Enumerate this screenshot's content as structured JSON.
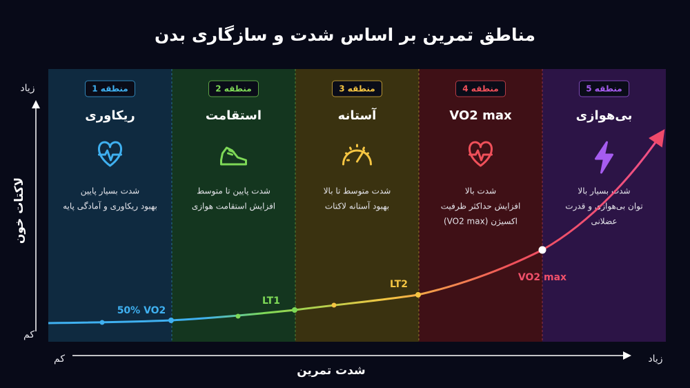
{
  "header": {
    "title": "مناطق تمرین بر اساس شدت و سازگاری بدن"
  },
  "y_axis": {
    "label": "لاکتات خون",
    "high": "زیاد",
    "low": "کم"
  },
  "x_axis": {
    "label": "شدت تمرین",
    "low": "کم",
    "high": "زیاد"
  },
  "zones": [
    {
      "badge": "منطقه 1",
      "title": "ریکاوری",
      "description": [
        "شدت بسیار پایین",
        "بهبود ریکاوری و آمادگی پایه"
      ]
    },
    {
      "badge": "منطقه 2",
      "title": "استقامت",
      "description": [
        "شدت پایین تا متوسط",
        "افزایش استقامت هوازی"
      ]
    },
    {
      "badge": "منطقه 3",
      "title": "آستانه",
      "description": [
        "شدت متوسط تا بالا",
        "بهبود آستانه لاکتات"
      ]
    },
    {
      "badge": "منطقه 4",
      "title": "VO2 max",
      "description": [
        "شدت بالا",
        "افزایش حداکثر ظرفیت",
        "اکسیژن (VO2 max)"
      ]
    },
    {
      "badge": "منطقه 5",
      "title": "بی‌هوازی",
      "description": [
        "شدت بسیار بالا",
        "توان بی‌هوازی و قدرت",
        "عضلانی"
      ]
    }
  ],
  "curve_markers": [
    "50% VO2",
    "LT1",
    "LT2",
    "VO2 max"
  ]
}
